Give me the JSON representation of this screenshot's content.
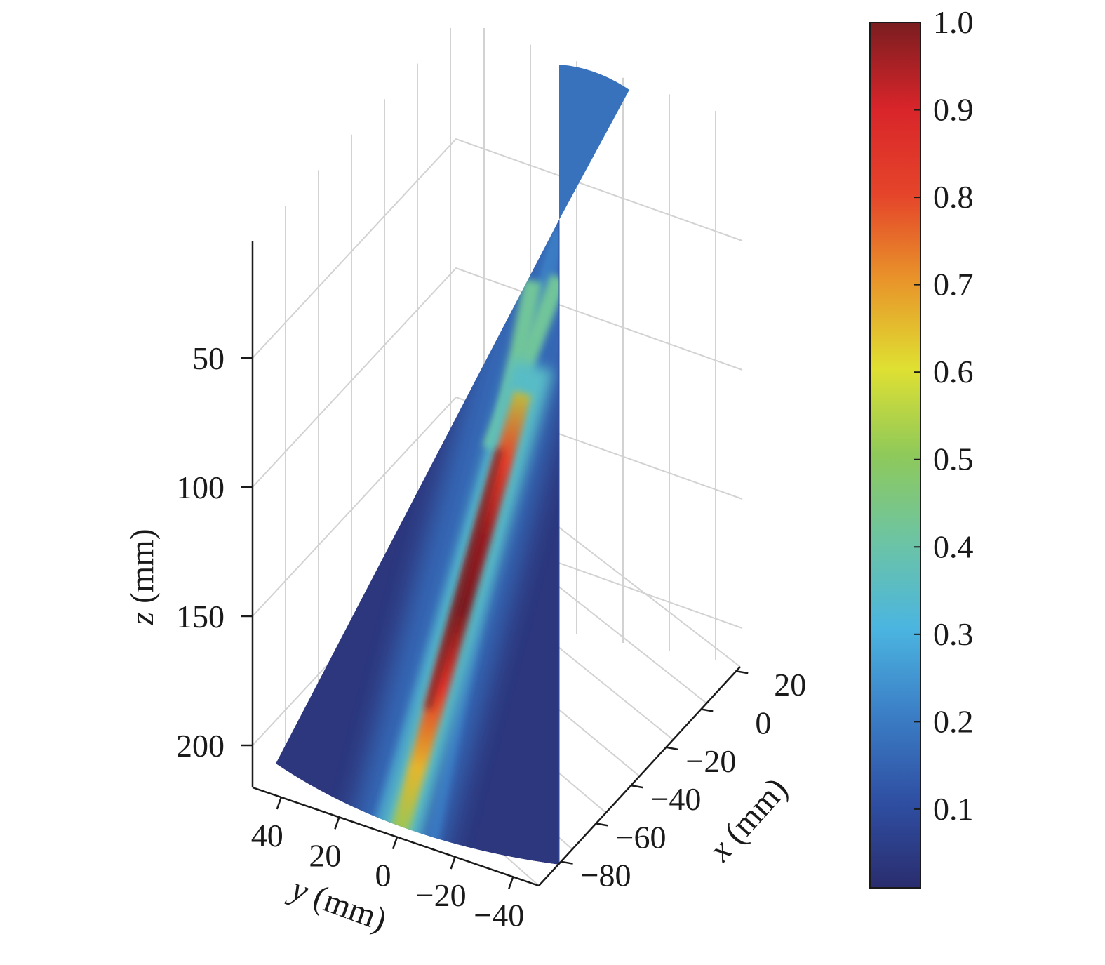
{
  "chart_data": {
    "type": "heatmap",
    "projection": "3d",
    "title": "",
    "xlabel": {
      "var": "x",
      "unit": " (mm)"
    },
    "ylabel": {
      "var": "y",
      "unit": " (mm)"
    },
    "zlabel": {
      "var": "z",
      "unit": " (mm)"
    },
    "x_ticks": [
      20,
      0,
      -20,
      -40,
      -60,
      -80
    ],
    "x_tick_labels": [
      "20",
      "0",
      "−20",
      "−40",
      "−60",
      "−80"
    ],
    "y_ticks": [
      40,
      20,
      0,
      -20,
      -40
    ],
    "y_tick_labels": [
      "40",
      "20",
      "0",
      "−20",
      "−40"
    ],
    "z_ticks": [
      50,
      100,
      150,
      200
    ],
    "z_tick_labels": [
      "50",
      "100",
      "150",
      "200"
    ],
    "z_reversed": true,
    "grid": true,
    "colorbar": {
      "ticks": [
        0.1,
        0.2,
        0.3,
        0.4,
        0.5,
        0.6,
        0.7,
        0.8,
        0.9,
        1.0
      ],
      "tick_labels": [
        "0.1",
        "0.2",
        "0.3",
        "0.4",
        "0.5",
        "0.6",
        "0.7",
        "0.8",
        "0.9",
        "1.0"
      ],
      "range": [
        0.01,
        1.0
      ],
      "colormap": "jet-like",
      "colors": [
        "#2a2d6e",
        "#2f4fa3",
        "#3b7ec6",
        "#4bb5e0",
        "#6cc4a4",
        "#8ec95a",
        "#dfe032",
        "#e8962a",
        "#e5452a",
        "#d9252a",
        "#7a1d20"
      ]
    },
    "field": {
      "description_values": {
        "background_intensity": 0.04,
        "upper_sector_intensity": 0.18,
        "beam_peak_intensity": 1.0,
        "beam_peak_z_range": [
          100,
          150
        ]
      }
    }
  }
}
